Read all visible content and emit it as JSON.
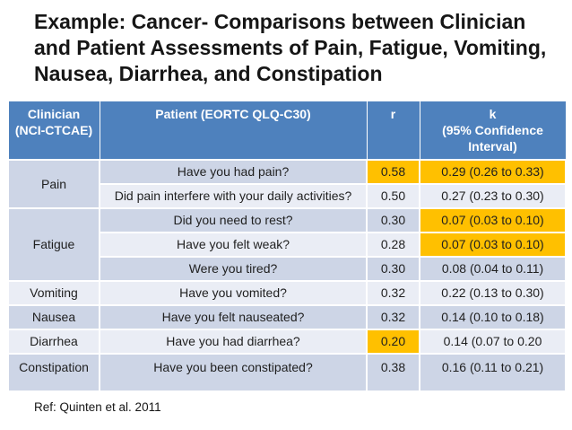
{
  "title": "Example: Cancer- Comparisons between Clinician and Patient Assessments of Pain, Fatigue, Vomiting, Nausea, Diarrhea, and Constipation",
  "reference": "Ref: Quinten et al. 2011",
  "colors": {
    "header_bg": "#4e81bd",
    "band_dark": "#cdd5e6",
    "band_light": "#eaedf5",
    "highlight": "#ffc000"
  },
  "table": {
    "headers": [
      "Clinician\n(NCI-CTCAE)",
      "Patient (EORTC QLQ-C30)",
      "r",
      "k\n(95% Confidence\nInterval)"
    ],
    "rows": [
      {
        "clinician": "Pain",
        "span": 2,
        "question": "Have you had pain?",
        "r": "0.58",
        "k": "0.29 (0.26 to 0.33)",
        "hl_r": true,
        "hl_k": true
      },
      {
        "question": "Did pain interfere with your daily activities?",
        "r": "0.50",
        "k": "0.27 (0.23 to 0.30)"
      },
      {
        "clinician": "Fatigue",
        "span": 3,
        "question": "Did you need to rest?",
        "r": "0.30",
        "k": "0.07 (0.03 to 0.10)",
        "hl_k": true
      },
      {
        "question": "Have you felt weak?",
        "r": "0.28",
        "k": "0.07 (0.03 to 0.10)",
        "hl_k": true
      },
      {
        "question": "Were you tired?",
        "r": "0.30",
        "k": "0.08 (0.04 to 0.11)"
      },
      {
        "clinician": "Vomiting",
        "span": 1,
        "question": "Have you vomited?",
        "r": "0.32",
        "k": "0.22 (0.13 to 0.30)"
      },
      {
        "clinician": "Nausea",
        "span": 1,
        "question": "Have you felt nauseated?",
        "r": "0.32",
        "k": "0.14 (0.10 to 0.18)"
      },
      {
        "clinician": "Diarrhea",
        "span": 1,
        "question": "Have you had diarrhea?",
        "r": "0.20",
        "k": "0.14 (0.07 to 0.20",
        "hl_r": true
      },
      {
        "clinician": "Constipation",
        "span": 1,
        "question": "Have you been constipated?",
        "r": "0.38",
        "k": "0.16 (0.11 to 0.21)"
      }
    ]
  }
}
